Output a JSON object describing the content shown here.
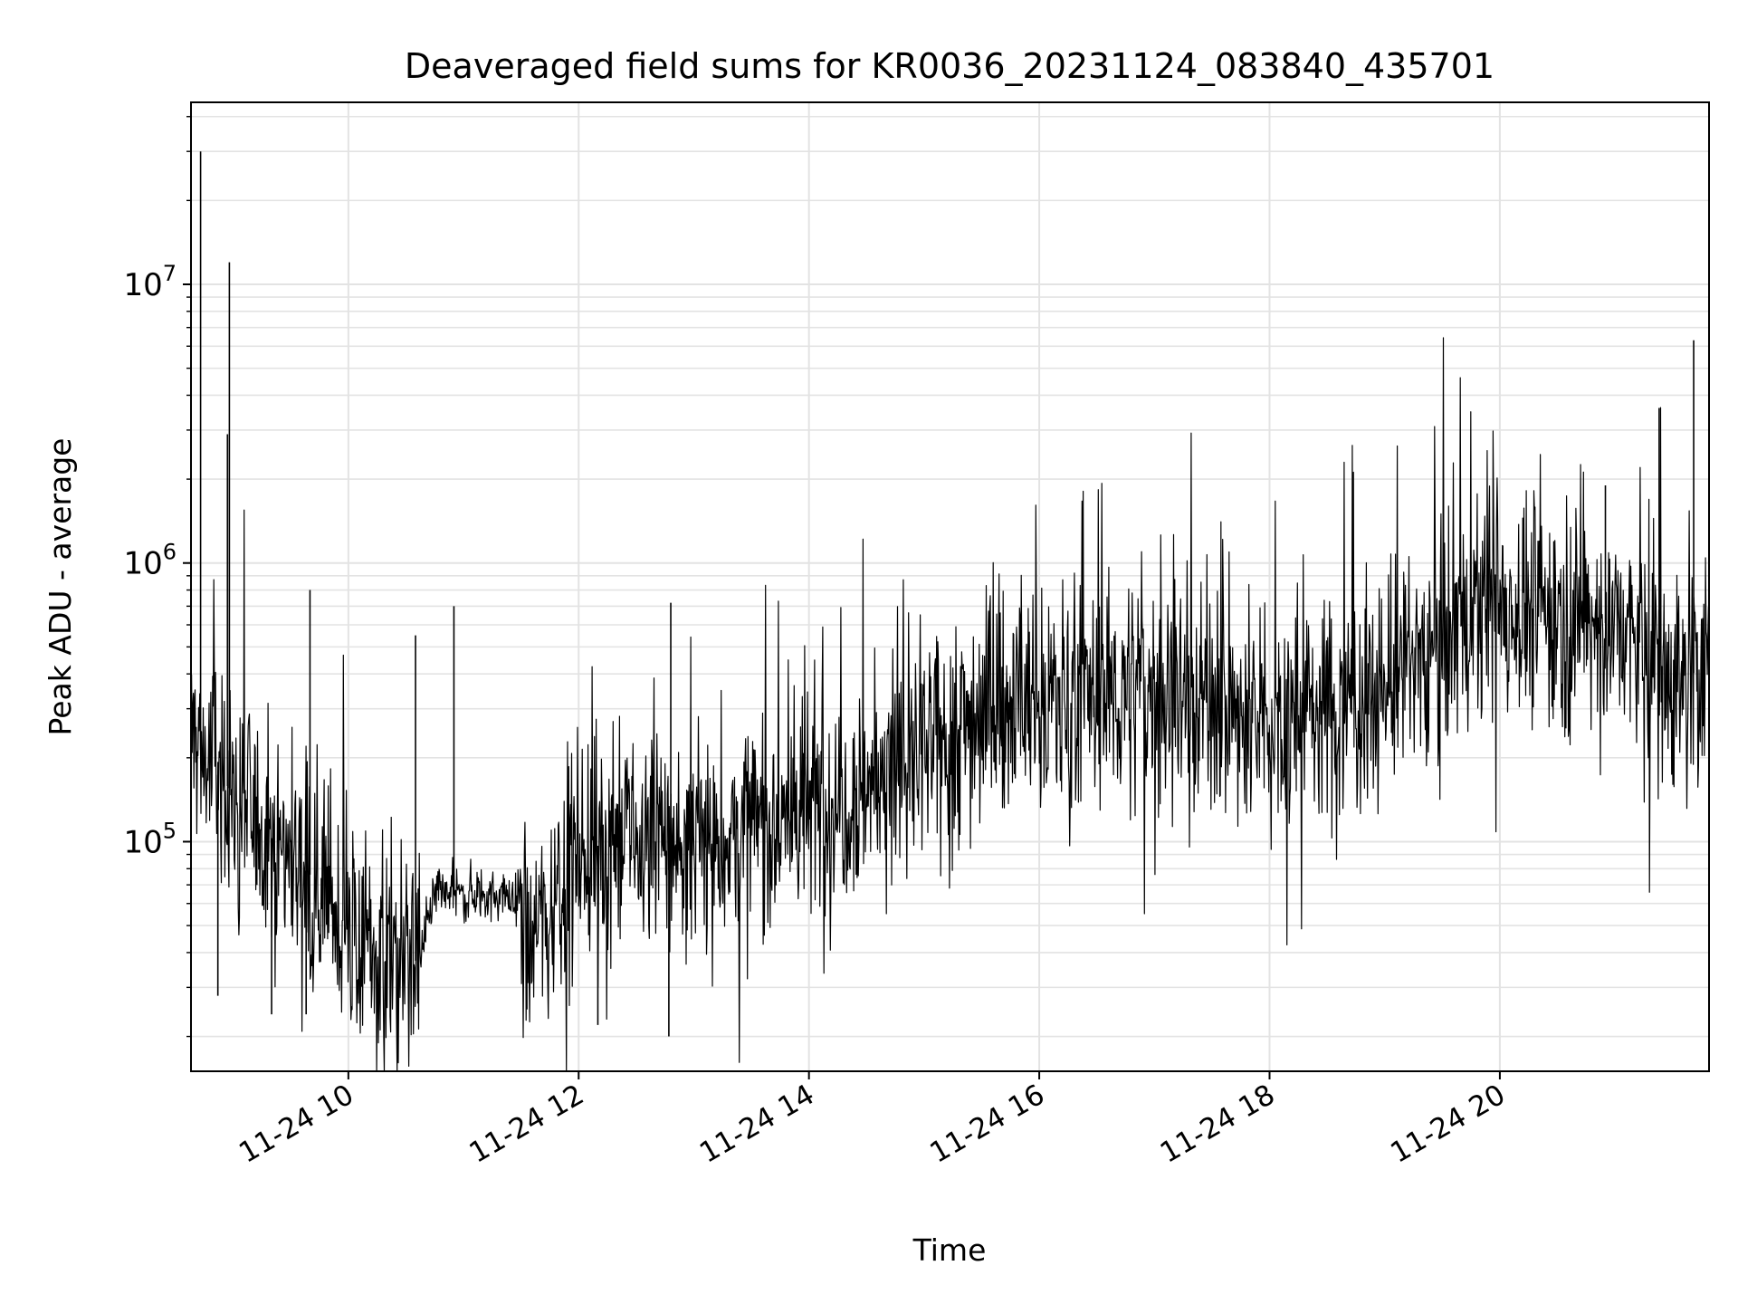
{
  "chart_data": {
    "type": "line",
    "title": "Deaveraged field sums for KR0036_20231124_083840_435701",
    "xlabel": "Time",
    "ylabel": "Peak ADU - average",
    "x_scale": "time",
    "y_scale": "log",
    "xlim": [
      "2023-11-24 08:38",
      "2023-11-24 21:49"
    ],
    "ylim": [
      15000,
      45000000
    ],
    "grid": true,
    "x_tick_labels": [
      "11-24 10",
      "11-24 12",
      "11-24 14",
      "11-24 16",
      "11-24 18",
      "11-24 20"
    ],
    "y_tick_labels": [
      {
        "base": "10",
        "exp": "5"
      },
      {
        "base": "10",
        "exp": "6"
      },
      {
        "base": "10",
        "exp": "7"
      }
    ],
    "line_color": "#000000",
    "series": [
      {
        "x": [
          "2023-11-24 08:38",
          "2023-11-24 08:45",
          "2023-11-24 08:50",
          "2023-11-24 09:00",
          "2023-11-24 09:15",
          "2023-11-24 09:30",
          "2023-11-24 09:45",
          "2023-11-24 10:00",
          "2023-11-24 10:15",
          "2023-11-24 10:30",
          "2023-11-24 10:37",
          "2023-11-24 10:45",
          "2023-11-24 11:00",
          "2023-11-24 11:15",
          "2023-11-24 11:30",
          "2023-11-24 11:35",
          "2023-11-24 11:45",
          "2023-11-24 12:00",
          "2023-11-24 12:30",
          "2023-11-24 13:00",
          "2023-11-24 13:30",
          "2023-11-24 14:00",
          "2023-11-24 14:30",
          "2023-11-24 15:00",
          "2023-11-24 15:30",
          "2023-11-24 16:00",
          "2023-11-24 16:30",
          "2023-11-24 17:00",
          "2023-11-24 17:30",
          "2023-11-24 17:50",
          "2023-11-24 18:00",
          "2023-11-24 18:30",
          "2023-11-24 19:00",
          "2023-11-24 19:30",
          "2023-11-24 20:00",
          "2023-11-24 20:30",
          "2023-11-24 21:00",
          "2023-11-24 21:20",
          "2023-11-24 21:30",
          "2023-11-24 21:49"
        ],
        "y": [
          250000,
          200000,
          180000,
          150000,
          110000,
          90000,
          70000,
          45000,
          38000,
          36000,
          38000,
          63000,
          65000,
          64000,
          63000,
          45000,
          60000,
          95000,
          100000,
          95000,
          110000,
          130000,
          160000,
          200000,
          300000,
          320000,
          330000,
          350000,
          330000,
          250000,
          270000,
          300000,
          350000,
          550000,
          700000,
          650000,
          600000,
          450000,
          380000,
          420000
        ],
        "peaks": [
          {
            "x": "2023-11-24 08:43",
            "y": 30000000
          },
          {
            "x": "2023-11-24 08:58",
            "y": 12000000
          },
          {
            "x": "2023-11-24 08:57",
            "y": 2900000
          },
          {
            "x": "2023-11-24 09:40",
            "y": 800000
          },
          {
            "x": "2023-11-24 10:35",
            "y": 550000
          },
          {
            "x": "2023-11-24 10:55",
            "y": 700000
          },
          {
            "x": "2023-11-24 12:48",
            "y": 720000
          },
          {
            "x": "2023-11-24 20:55",
            "y": 1900000
          },
          {
            "x": "2023-11-24 21:23",
            "y": 3600000
          },
          {
            "x": "2023-11-24 21:41",
            "y": 6300000
          }
        ],
        "troughs": [
          {
            "x": "2023-11-24 08:52",
            "y": 28000
          },
          {
            "x": "2023-11-24 09:20",
            "y": 24000
          },
          {
            "x": "2023-11-24 09:38",
            "y": 24000
          },
          {
            "x": "2023-11-24 11:33",
            "y": 25000
          },
          {
            "x": "2023-11-24 12:10",
            "y": 22000
          },
          {
            "x": "2023-11-24 12:47",
            "y": 20000
          }
        ]
      }
    ]
  }
}
